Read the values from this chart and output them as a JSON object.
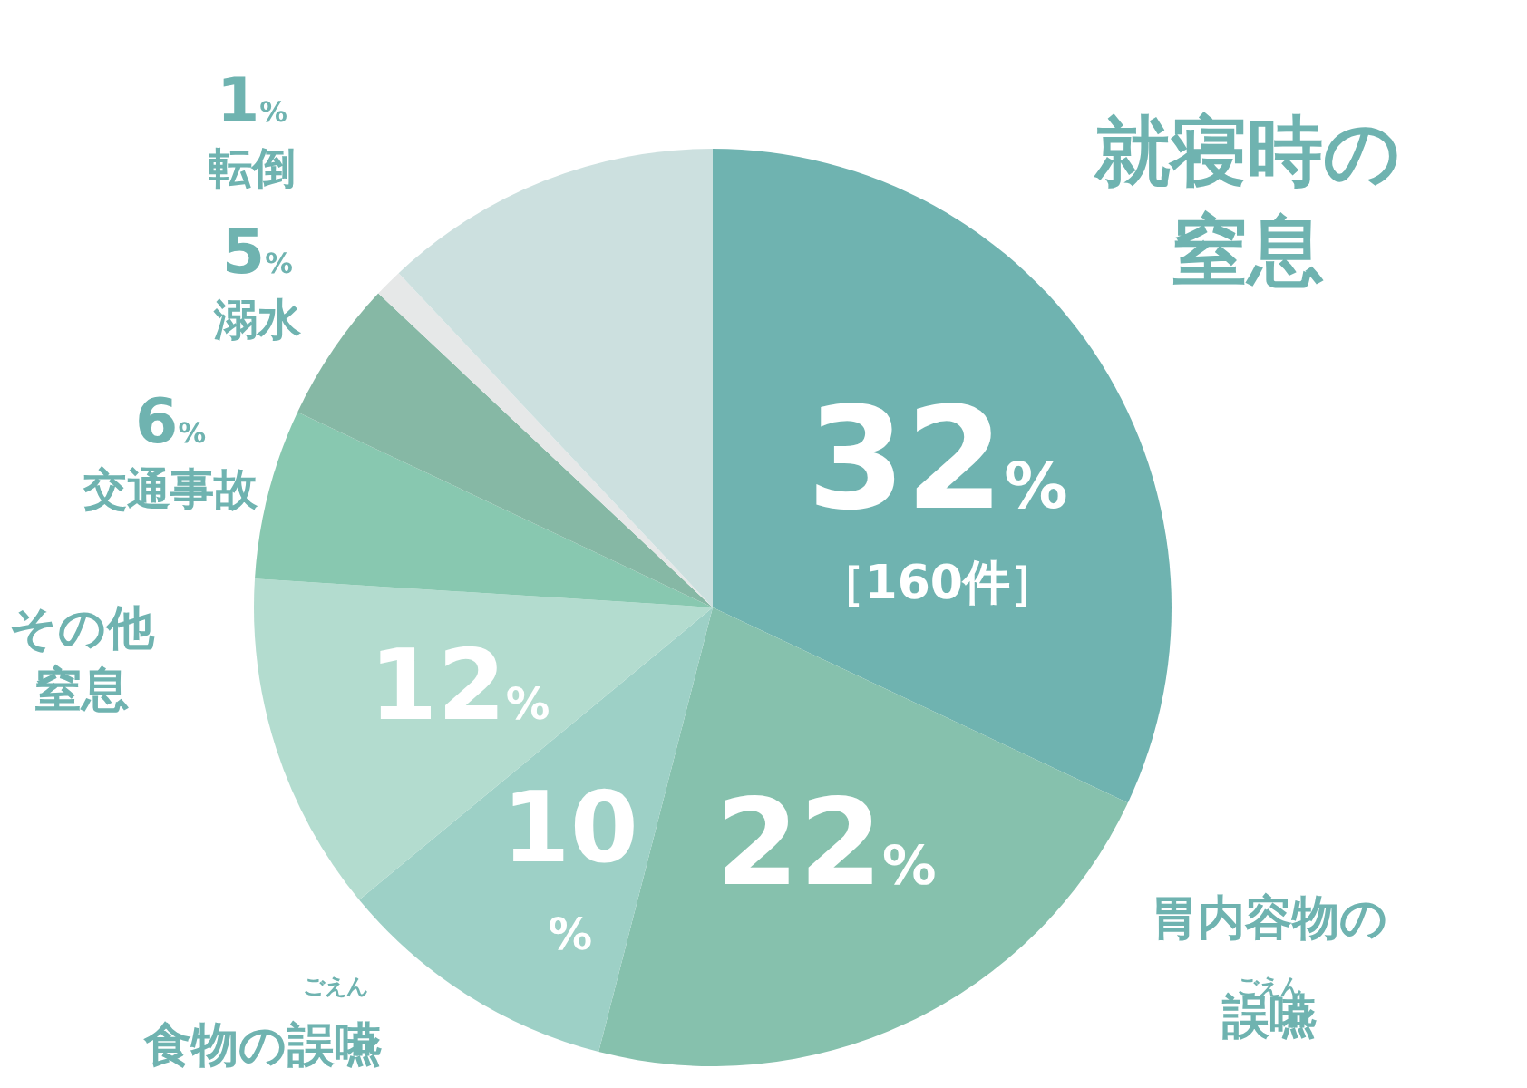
{
  "chart_data": {
    "type": "pie",
    "categories": [
      "就寝時の窒息",
      "胃内容物の誤嚥",
      "食物の誤嚥",
      "その他窒息",
      "交通事故",
      "溺水",
      "転倒",
      null
    ],
    "values": [
      32,
      22,
      10,
      12,
      6,
      5,
      1,
      12
    ],
    "colors": [
      "#6fb3b0",
      "#86c1ad",
      "#9dd0c6",
      "#b3dccf",
      "#88c8b0",
      "#86b8a5",
      "#e6e8e8",
      "#cce0df"
    ],
    "value_labels": [
      "32%",
      "22%",
      "10%",
      "12%",
      "6%",
      "5%",
      "1%",
      null
    ],
    "annotations": [
      "［160件］",
      "ごえん",
      "ごえん"
    ]
  }
}
